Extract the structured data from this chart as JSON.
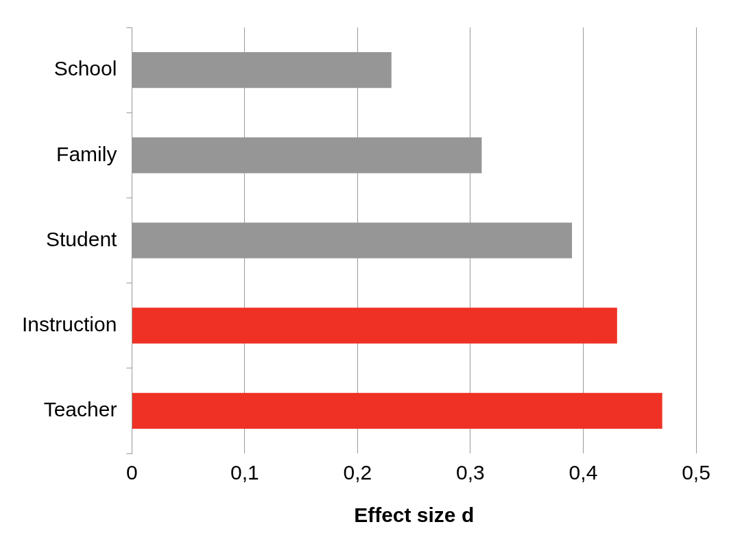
{
  "chart_data": {
    "type": "bar",
    "orientation": "horizontal",
    "categories": [
      "School",
      "Family",
      "Student",
      "Instruction",
      "Teacher"
    ],
    "values": [
      0.23,
      0.31,
      0.39,
      0.43,
      0.47
    ],
    "colors": [
      "#969696",
      "#969696",
      "#969696",
      "#ee3124",
      "#ee3124"
    ],
    "xlim": [
      0,
      0.5
    ],
    "xticks": [
      0,
      {
        "value": 0.1,
        "label": "0,1"
      },
      {
        "value": 0.2,
        "label": "0,2"
      },
      {
        "value": 0.3,
        "label": "0,3"
      },
      {
        "value": 0.4,
        "label": "0,4"
      },
      {
        "value": 0.5,
        "label": "0,5"
      }
    ],
    "xlabel": "Effect size d",
    "grid": "x",
    "legend": false
  }
}
